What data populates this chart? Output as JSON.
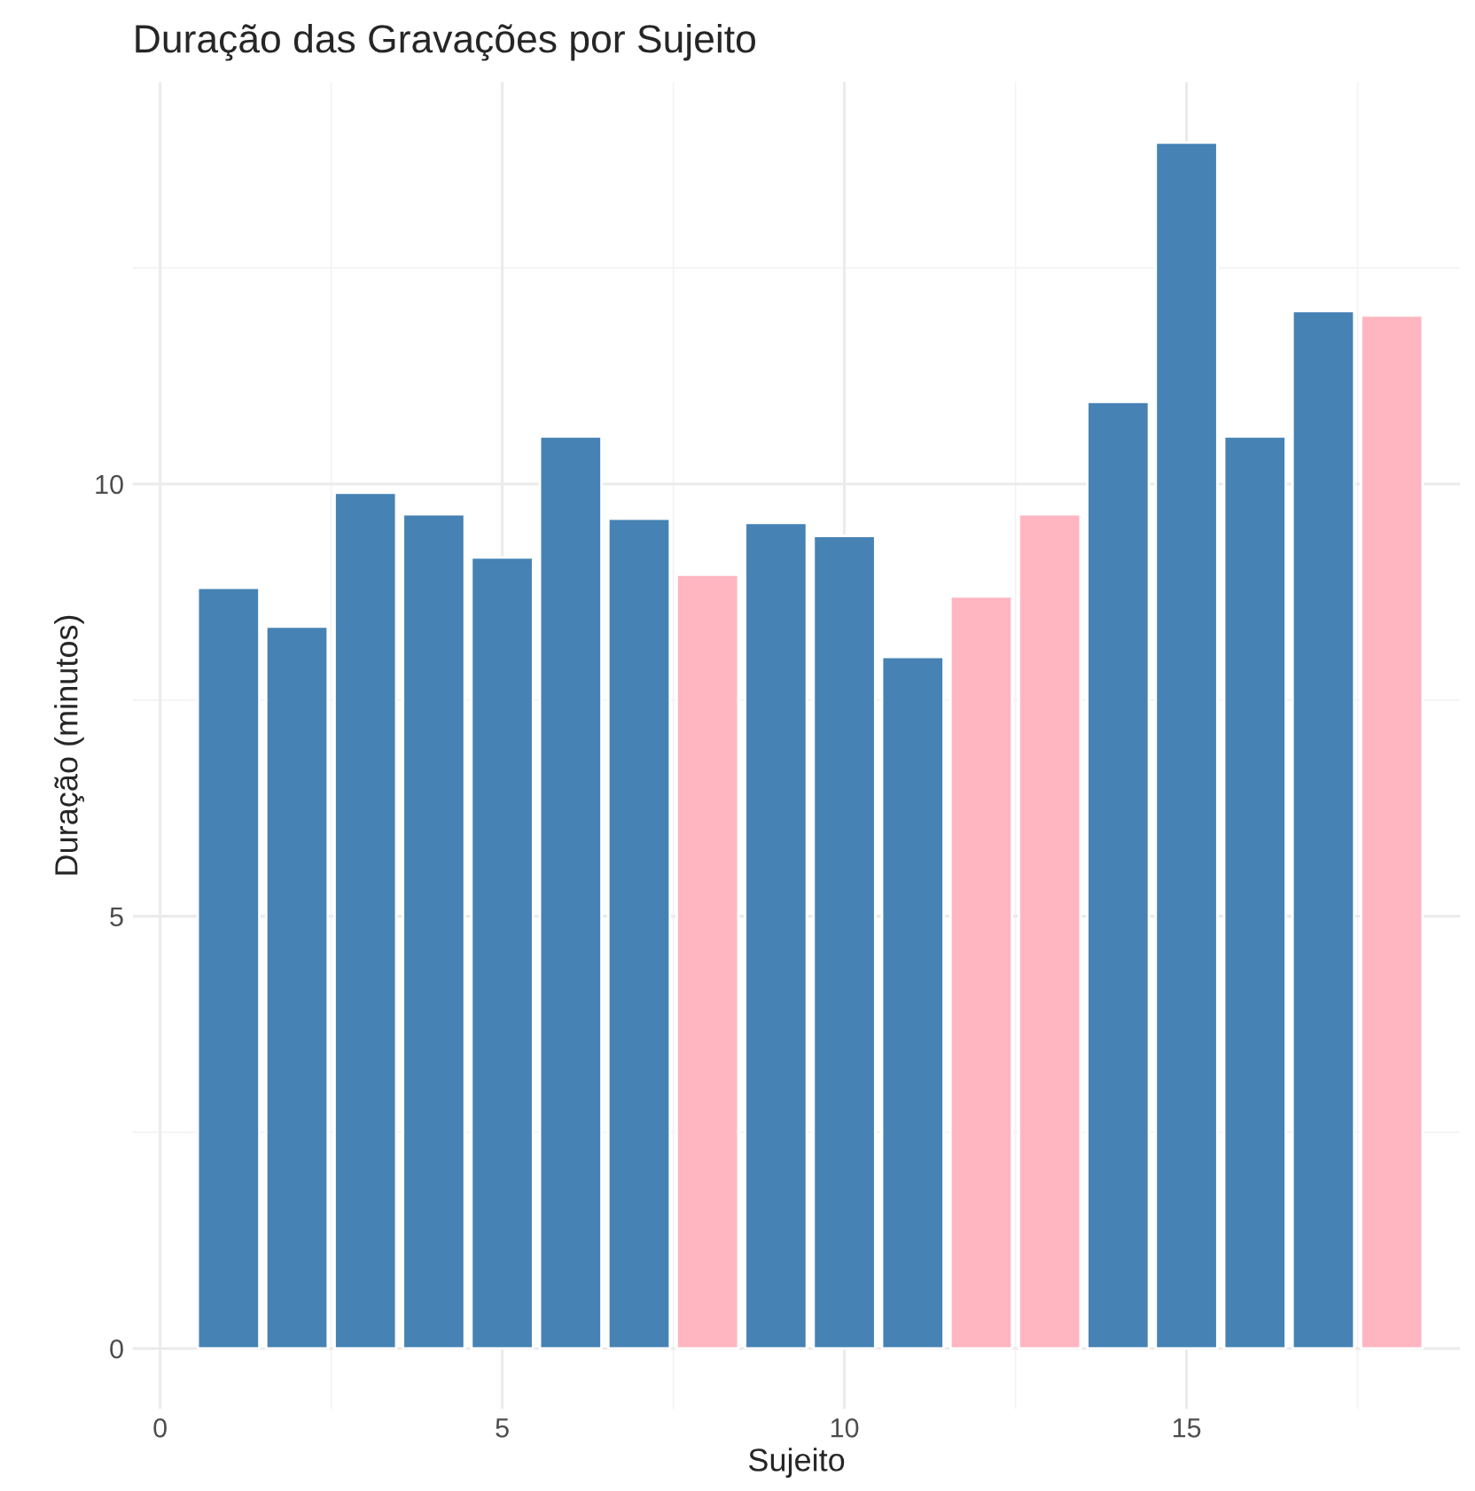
{
  "chart_data": {
    "type": "bar",
    "title": "Duração das Gravações por Sujeito",
    "xlabel": "Sujeito",
    "ylabel": "Duração (minutos)",
    "x": [
      1,
      2,
      3,
      4,
      5,
      6,
      7,
      8,
      9,
      10,
      11,
      12,
      13,
      14,
      15,
      16,
      17,
      18
    ],
    "values": [
      8.8,
      8.35,
      9.9,
      9.65,
      9.15,
      10.55,
      9.6,
      8.95,
      9.55,
      9.4,
      8.0,
      8.7,
      9.65,
      10.95,
      13.95,
      10.55,
      12.0,
      11.95
    ],
    "colors": [
      "#4682b4",
      "#4682b4",
      "#4682b4",
      "#4682b4",
      "#4682b4",
      "#4682b4",
      "#4682b4",
      "#ffb6c1",
      "#4682b4",
      "#4682b4",
      "#4682b4",
      "#ffb6c1",
      "#ffb6c1",
      "#4682b4",
      "#4682b4",
      "#4682b4",
      "#4682b4",
      "#ffb6c1"
    ],
    "xlim": [
      -0.4,
      19.0
    ],
    "ylim": [
      -0.7,
      14.65
    ],
    "xticks": [
      0,
      5,
      10,
      15
    ],
    "yticks": [
      0,
      5,
      10
    ],
    "grid": true
  }
}
